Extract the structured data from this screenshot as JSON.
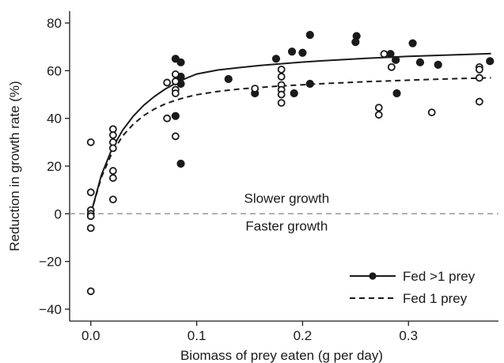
{
  "chart_data": {
    "type": "scatter",
    "xlabel": "Biomass of prey eaten (g per day)",
    "ylabel": "Reduction in growth rate (%)",
    "xlim": [
      -0.02,
      0.385
    ],
    "ylim": [
      -45,
      85
    ],
    "x_ticks": [
      0.0,
      0.1,
      0.2,
      0.3
    ],
    "x_tick_labels": [
      "0.0",
      "0.1",
      "0.2",
      "0.3"
    ],
    "y_ticks": [
      -40,
      -20,
      0,
      20,
      40,
      60,
      80
    ],
    "y_tick_labels": [
      "−40",
      "−20",
      "0",
      "20",
      "40",
      "60",
      "80"
    ],
    "grid": false,
    "legend_position": "bottom-right",
    "reference_line": {
      "y": 0,
      "style": "dashed",
      "color": "#999999"
    },
    "annotations": [
      {
        "text": "Slower growth",
        "x": 0.185,
        "y": 4.5
      },
      {
        "text": "Faster growth",
        "x": 0.185,
        "y": -7
      }
    ],
    "series": [
      {
        "name": "Fed >1 prey",
        "marker": "filled-circle",
        "line_style": "solid",
        "points": [
          [
            0.08,
            65
          ],
          [
            0.085,
            63.5
          ],
          [
            0.085,
            57.5
          ],
          [
            0.085,
            54.5
          ],
          [
            0.08,
            41
          ],
          [
            0.085,
            21
          ],
          [
            0.13,
            56.5
          ],
          [
            0.155,
            50.5
          ],
          [
            0.175,
            65
          ],
          [
            0.19,
            68
          ],
          [
            0.192,
            50.5
          ],
          [
            0.2,
            67.5
          ],
          [
            0.207,
            75
          ],
          [
            0.207,
            54.5
          ],
          [
            0.25,
            72
          ],
          [
            0.251,
            74.5
          ],
          [
            0.283,
            67
          ],
          [
            0.288,
            64.5
          ],
          [
            0.289,
            50.5
          ],
          [
            0.304,
            71.5
          ],
          [
            0.311,
            63.5
          ],
          [
            0.328,
            62.5
          ],
          [
            0.377,
            64
          ]
        ],
        "fit": [
          [
            0.0,
            0.0
          ],
          [
            0.01,
            16.2
          ],
          [
            0.02,
            27.2
          ],
          [
            0.03,
            35.0
          ],
          [
            0.04,
            40.9
          ],
          [
            0.05,
            45.5
          ],
          [
            0.06,
            49.2
          ],
          [
            0.07,
            52.2
          ],
          [
            0.08,
            54.7
          ],
          [
            0.09,
            56.8
          ],
          [
            0.1,
            58.6
          ],
          [
            0.12,
            60.3
          ],
          [
            0.14,
            61.3
          ],
          [
            0.16,
            62.2
          ],
          [
            0.18,
            62.9
          ],
          [
            0.2,
            63.6
          ],
          [
            0.22,
            64.2
          ],
          [
            0.24,
            64.7
          ],
          [
            0.26,
            65.2
          ],
          [
            0.28,
            65.6
          ],
          [
            0.3,
            66.0
          ],
          [
            0.32,
            66.3
          ],
          [
            0.34,
            66.6
          ],
          [
            0.36,
            66.9
          ],
          [
            0.378,
            67.2
          ]
        ]
      },
      {
        "name": "Fed 1 prey",
        "marker": "open-circle",
        "line_style": "dashed",
        "points": [
          [
            0.0,
            30
          ],
          [
            0.0,
            9
          ],
          [
            0.0,
            1.5
          ],
          [
            0.0,
            0
          ],
          [
            0.0,
            -1
          ],
          [
            0.0,
            -6
          ],
          [
            0.0,
            -32.5
          ],
          [
            0.021,
            35.5
          ],
          [
            0.021,
            33
          ],
          [
            0.021,
            30
          ],
          [
            0.021,
            27.5
          ],
          [
            0.021,
            18
          ],
          [
            0.021,
            15
          ],
          [
            0.021,
            6
          ],
          [
            0.072,
            55
          ],
          [
            0.072,
            40
          ],
          [
            0.08,
            58.5
          ],
          [
            0.08,
            55.5
          ],
          [
            0.08,
            52
          ],
          [
            0.08,
            50.5
          ],
          [
            0.08,
            32.5
          ],
          [
            0.155,
            52.5
          ],
          [
            0.18,
            60.5
          ],
          [
            0.18,
            57.5
          ],
          [
            0.18,
            54
          ],
          [
            0.18,
            52
          ],
          [
            0.18,
            50
          ],
          [
            0.18,
            46.5
          ],
          [
            0.272,
            44.5
          ],
          [
            0.272,
            41.5
          ],
          [
            0.277,
            67
          ],
          [
            0.284,
            61.5
          ],
          [
            0.322,
            42.5
          ],
          [
            0.367,
            61.5
          ],
          [
            0.367,
            60.5
          ],
          [
            0.367,
            57
          ],
          [
            0.367,
            47
          ]
        ],
        "fit": [
          [
            0.0,
            0.0
          ],
          [
            0.01,
            15.3
          ],
          [
            0.02,
            25.5
          ],
          [
            0.03,
            32.6
          ],
          [
            0.04,
            37.5
          ],
          [
            0.05,
            41.2
          ],
          [
            0.06,
            43.9
          ],
          [
            0.07,
            46.0
          ],
          [
            0.08,
            47.6
          ],
          [
            0.09,
            48.9
          ],
          [
            0.1,
            49.9
          ],
          [
            0.12,
            51.3
          ],
          [
            0.14,
            52.3
          ],
          [
            0.16,
            53.0
          ],
          [
            0.18,
            53.6
          ],
          [
            0.2,
            54.1
          ],
          [
            0.22,
            54.6
          ],
          [
            0.24,
            55.0
          ],
          [
            0.26,
            55.4
          ],
          [
            0.28,
            55.7
          ],
          [
            0.3,
            56.0
          ],
          [
            0.32,
            56.3
          ],
          [
            0.34,
            56.6
          ],
          [
            0.36,
            56.8
          ],
          [
            0.378,
            57.0
          ]
        ]
      }
    ]
  }
}
